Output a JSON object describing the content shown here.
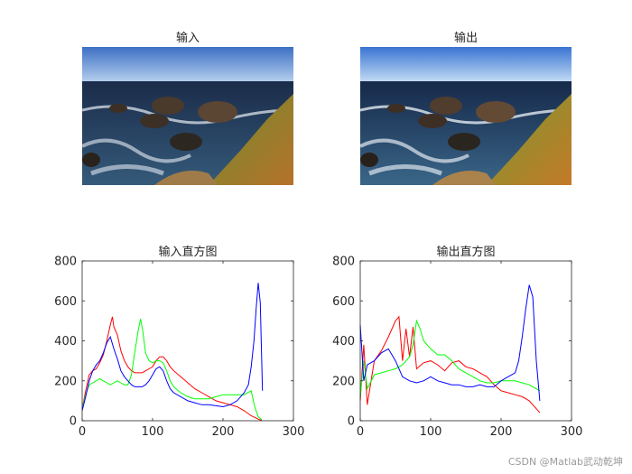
{
  "titles": {
    "input_image": "输入",
    "output_image": "输出",
    "input_hist": "输入直方图",
    "output_hist": "输出直方图"
  },
  "watermark": "CSDN @Matlab武动乾坤",
  "colors": {
    "red": "#ff0000",
    "green": "#00ff00",
    "blue": "#0000ff",
    "axis": "#262626"
  },
  "chart_data": [
    {
      "type": "line",
      "title": "输入直方图",
      "xlim": [
        0,
        300
      ],
      "ylim": [
        0,
        800
      ],
      "xticks": [
        0,
        100,
        200,
        300
      ],
      "yticks": [
        0,
        200,
        400,
        600,
        800
      ],
      "grid": false,
      "series": [
        {
          "color": "#ff0000",
          "points": [
            [
              0,
              60
            ],
            [
              5,
              150
            ],
            [
              10,
              230
            ],
            [
              15,
              250
            ],
            [
              20,
              260
            ],
            [
              25,
              290
            ],
            [
              30,
              330
            ],
            [
              35,
              400
            ],
            [
              40,
              480
            ],
            [
              43,
              520
            ],
            [
              45,
              470
            ],
            [
              50,
              430
            ],
            [
              55,
              350
            ],
            [
              60,
              300
            ],
            [
              65,
              270
            ],
            [
              70,
              250
            ],
            [
              75,
              240
            ],
            [
              80,
              240
            ],
            [
              85,
              240
            ],
            [
              90,
              250
            ],
            [
              95,
              260
            ],
            [
              100,
              270
            ],
            [
              105,
              300
            ],
            [
              110,
              320
            ],
            [
              115,
              320
            ],
            [
              120,
              300
            ],
            [
              125,
              270
            ],
            [
              130,
              250
            ],
            [
              140,
              220
            ],
            [
              150,
              190
            ],
            [
              160,
              160
            ],
            [
              170,
              140
            ],
            [
              180,
              120
            ],
            [
              190,
              100
            ],
            [
              200,
              90
            ],
            [
              210,
              80
            ],
            [
              220,
              70
            ],
            [
              230,
              50
            ],
            [
              240,
              25
            ],
            [
              250,
              8
            ],
            [
              255,
              2
            ]
          ]
        },
        {
          "color": "#00ff00",
          "points": [
            [
              0,
              60
            ],
            [
              5,
              130
            ],
            [
              10,
              180
            ],
            [
              15,
              190
            ],
            [
              20,
              200
            ],
            [
              25,
              210
            ],
            [
              30,
              200
            ],
            [
              35,
              190
            ],
            [
              40,
              180
            ],
            [
              45,
              190
            ],
            [
              50,
              200
            ],
            [
              55,
              190
            ],
            [
              60,
              180
            ],
            [
              65,
              180
            ],
            [
              70,
              230
            ],
            [
              75,
              350
            ],
            [
              80,
              460
            ],
            [
              83,
              510
            ],
            [
              86,
              450
            ],
            [
              90,
              340
            ],
            [
              95,
              300
            ],
            [
              100,
              290
            ],
            [
              105,
              300
            ],
            [
              110,
              300
            ],
            [
              115,
              290
            ],
            [
              120,
              250
            ],
            [
              125,
              200
            ],
            [
              130,
              170
            ],
            [
              140,
              140
            ],
            [
              150,
              120
            ],
            [
              160,
              110
            ],
            [
              170,
              110
            ],
            [
              180,
              110
            ],
            [
              190,
              120
            ],
            [
              200,
              130
            ],
            [
              210,
              130
            ],
            [
              220,
              130
            ],
            [
              230,
              130
            ],
            [
              240,
              150
            ],
            [
              245,
              70
            ],
            [
              250,
              20
            ],
            [
              255,
              5
            ]
          ]
        },
        {
          "color": "#0000ff",
          "points": [
            [
              0,
              50
            ],
            [
              5,
              120
            ],
            [
              10,
              200
            ],
            [
              15,
              250
            ],
            [
              20,
              280
            ],
            [
              25,
              300
            ],
            [
              30,
              340
            ],
            [
              35,
              390
            ],
            [
              40,
              420
            ],
            [
              45,
              360
            ],
            [
              50,
              310
            ],
            [
              55,
              250
            ],
            [
              60,
              220
            ],
            [
              65,
              200
            ],
            [
              70,
              180
            ],
            [
              75,
              170
            ],
            [
              80,
              170
            ],
            [
              85,
              170
            ],
            [
              90,
              180
            ],
            [
              95,
              200
            ],
            [
              100,
              230
            ],
            [
              105,
              260
            ],
            [
              110,
              270
            ],
            [
              115,
              250
            ],
            [
              120,
              200
            ],
            [
              125,
              160
            ],
            [
              130,
              140
            ],
            [
              140,
              120
            ],
            [
              150,
              100
            ],
            [
              160,
              90
            ],
            [
              170,
              80
            ],
            [
              180,
              80
            ],
            [
              190,
              75
            ],
            [
              200,
              70
            ],
            [
              210,
              80
            ],
            [
              220,
              100
            ],
            [
              230,
              140
            ],
            [
              236,
              180
            ],
            [
              240,
              270
            ],
            [
              244,
              400
            ],
            [
              247,
              560
            ],
            [
              250,
              690
            ],
            [
              253,
              590
            ],
            [
              256,
              150
            ]
          ]
        }
      ]
    },
    {
      "type": "line",
      "title": "输出直方图",
      "xlim": [
        0,
        300
      ],
      "ylim": [
        0,
        800
      ],
      "xticks": [
        0,
        100,
        200,
        300
      ],
      "yticks": [
        0,
        200,
        400,
        600,
        800
      ],
      "grid": false,
      "series": [
        {
          "color": "#ff0000",
          "points": [
            [
              0,
              100
            ],
            [
              5,
              380
            ],
            [
              10,
              80
            ],
            [
              20,
              300
            ],
            [
              30,
              350
            ],
            [
              40,
              420
            ],
            [
              50,
              500
            ],
            [
              55,
              520
            ],
            [
              60,
              300
            ],
            [
              65,
              460
            ],
            [
              70,
              320
            ],
            [
              75,
              470
            ],
            [
              80,
              260
            ],
            [
              90,
              290
            ],
            [
              100,
              300
            ],
            [
              110,
              280
            ],
            [
              120,
              250
            ],
            [
              130,
              290
            ],
            [
              140,
              300
            ],
            [
              150,
              270
            ],
            [
              160,
              260
            ],
            [
              170,
              240
            ],
            [
              180,
              220
            ],
            [
              190,
              180
            ],
            [
              200,
              150
            ],
            [
              210,
              140
            ],
            [
              220,
              130
            ],
            [
              230,
              120
            ],
            [
              240,
              100
            ],
            [
              250,
              60
            ],
            [
              255,
              40
            ]
          ]
        },
        {
          "color": "#00ff00",
          "points": [
            [
              0,
              120
            ],
            [
              5,
              300
            ],
            [
              10,
              160
            ],
            [
              20,
              230
            ],
            [
              30,
              240
            ],
            [
              40,
              250
            ],
            [
              50,
              260
            ],
            [
              60,
              280
            ],
            [
              70,
              320
            ],
            [
              75,
              380
            ],
            [
              80,
              500
            ],
            [
              85,
              460
            ],
            [
              90,
              400
            ],
            [
              100,
              360
            ],
            [
              110,
              330
            ],
            [
              120,
              330
            ],
            [
              130,
              300
            ],
            [
              140,
              260
            ],
            [
              150,
              240
            ],
            [
              160,
              220
            ],
            [
              170,
              200
            ],
            [
              180,
              190
            ],
            [
              190,
              190
            ],
            [
              200,
              200
            ],
            [
              210,
              200
            ],
            [
              220,
              200
            ],
            [
              230,
              190
            ],
            [
              240,
              180
            ],
            [
              250,
              160
            ],
            [
              255,
              150
            ]
          ]
        },
        {
          "color": "#0000ff",
          "points": [
            [
              0,
              480
            ],
            [
              5,
              200
            ],
            [
              10,
              280
            ],
            [
              20,
              300
            ],
            [
              30,
              340
            ],
            [
              40,
              360
            ],
            [
              50,
              300
            ],
            [
              60,
              220
            ],
            [
              70,
              200
            ],
            [
              80,
              190
            ],
            [
              90,
              200
            ],
            [
              100,
              220
            ],
            [
              110,
              200
            ],
            [
              120,
              190
            ],
            [
              130,
              180
            ],
            [
              140,
              180
            ],
            [
              150,
              170
            ],
            [
              160,
              170
            ],
            [
              170,
              180
            ],
            [
              180,
              170
            ],
            [
              190,
              170
            ],
            [
              200,
              200
            ],
            [
              210,
              220
            ],
            [
              220,
              240
            ],
            [
              225,
              300
            ],
            [
              230,
              420
            ],
            [
              235,
              560
            ],
            [
              240,
              680
            ],
            [
              245,
              620
            ],
            [
              250,
              300
            ],
            [
              255,
              100
            ]
          ]
        }
      ]
    }
  ]
}
